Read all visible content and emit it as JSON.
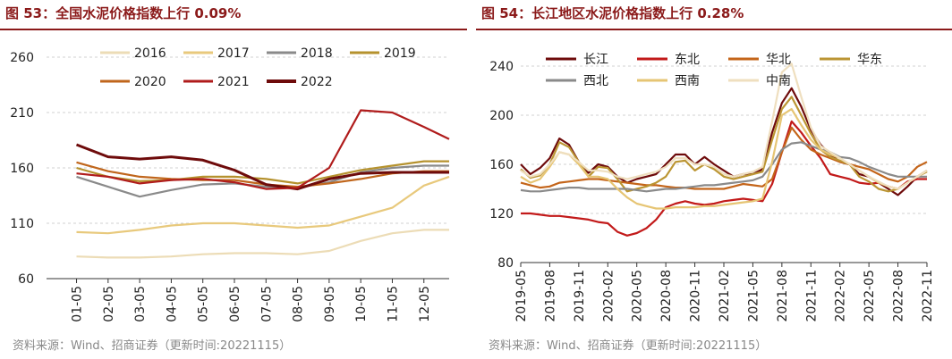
{
  "charts": [
    {
      "title": "图 53：全国水泥价格指数上行 0.09%",
      "source": "资料来源：Wind、招商证券（更新时间:20221115）"
    },
    {
      "title": "图 54：长江地区水泥价格指数上行 0.28%",
      "source": "资料来源：Wind、招商证券（更新时间:20221115）"
    }
  ],
  "chart_data": [
    {
      "type": "line",
      "title": "图 53：全国水泥价格指数上行 0.09%",
      "xlabel": "",
      "ylabel": "",
      "ylim": [
        60,
        260
      ],
      "yticks": [
        60,
        110,
        160,
        210,
        260
      ],
      "x": [
        1,
        2,
        3,
        4,
        5,
        6,
        7,
        8,
        9,
        10,
        11,
        12,
        12.8
      ],
      "categories": [
        "01-05",
        "02-05",
        "03-05",
        "04-05",
        "05-05",
        "06-05",
        "07-05",
        "08-05",
        "09-05",
        "10-05",
        "11-05",
        "12-05"
      ],
      "grid": true,
      "legend": "top",
      "series": [
        {
          "name": "2016",
          "color": "#ecdcb6",
          "values": [
            80,
            79,
            79,
            80,
            82,
            83,
            83,
            82,
            85,
            94,
            101,
            104,
            104
          ]
        },
        {
          "name": "2017",
          "color": "#e8c97c",
          "values": [
            102,
            101,
            104,
            108,
            110,
            110,
            108,
            106,
            108,
            116,
            124,
            144,
            152
          ]
        },
        {
          "name": "2018",
          "color": "#8a8a8a",
          "values": [
            152,
            143,
            134,
            140,
            145,
            146,
            143,
            142,
            147,
            156,
            160,
            162,
            162
          ]
        },
        {
          "name": "2019",
          "color": "#b5922e",
          "values": [
            160,
            152,
            148,
            149,
            152,
            152,
            150,
            146,
            152,
            158,
            162,
            166,
            166
          ]
        },
        {
          "name": "2020",
          "color": "#c0661c",
          "values": [
            165,
            157,
            152,
            150,
            149,
            149,
            145,
            143,
            146,
            150,
            155,
            157,
            157
          ]
        },
        {
          "name": "2021",
          "color": "#b01c1c",
          "values": [
            155,
            152,
            146,
            149,
            150,
            147,
            141,
            142,
            160,
            212,
            210,
            197,
            186
          ]
        },
        {
          "name": "2022",
          "color": "#6e0b0b",
          "values": [
            181,
            170,
            168,
            170,
            167,
            158,
            145,
            141,
            150,
            155,
            156,
            156,
            156
          ]
        }
      ]
    },
    {
      "type": "line",
      "title": "图 54：长江地区水泥价格指数上行 0.28%",
      "xlabel": "",
      "ylabel": "",
      "ylim": [
        80,
        240
      ],
      "yticks": [
        80,
        120,
        160,
        200,
        240
      ],
      "x": [
        0,
        1,
        2,
        3,
        4,
        5,
        6,
        7,
        8,
        9,
        10,
        11,
        12,
        13,
        14,
        15,
        16,
        17,
        18,
        19,
        20,
        21,
        22,
        23,
        24,
        25,
        26,
        27,
        28,
        29,
        30,
        31,
        32,
        33,
        34,
        35,
        36,
        37,
        38,
        39,
        40,
        41,
        42
      ],
      "categories": [
        "2019-05",
        "2019-08",
        "2019-11",
        "2020-02",
        "2020-05",
        "2020-08",
        "2020-11",
        "2021-02",
        "2021-05",
        "2021-08",
        "2021-11",
        "2022-02",
        "2022-05",
        "2022-08",
        "2022-11"
      ],
      "category_months": [
        0,
        3,
        6,
        9,
        12,
        15,
        18,
        21,
        24,
        27,
        30,
        33,
        36,
        39,
        42
      ],
      "grid": true,
      "legend": "top",
      "series": [
        {
          "name": "长江",
          "color": "#6e0b0b",
          "values": [
            160,
            152,
            157,
            165,
            181,
            176,
            162,
            153,
            160,
            158,
            150,
            145,
            148,
            150,
            152,
            160,
            168,
            168,
            160,
            166,
            160,
            155,
            150,
            152,
            152,
            156,
            186,
            210,
            222,
            207,
            188,
            176,
            168,
            162,
            160,
            152,
            150,
            145,
            140,
            135,
            142,
            150,
            155
          ]
        },
        {
          "name": "东北",
          "color": "#c21a1a",
          "values": [
            120,
            120,
            119,
            118,
            118,
            117,
            116,
            115,
            113,
            112,
            105,
            102,
            104,
            108,
            115,
            125,
            128,
            130,
            128,
            127,
            128,
            130,
            131,
            132,
            131,
            130,
            144,
            170,
            195,
            186,
            175,
            165,
            152,
            150,
            148,
            145,
            144,
            145,
            142,
            140,
            146,
            148,
            148
          ]
        },
        {
          "name": "华北",
          "color": "#c4651a",
          "values": [
            145,
            143,
            141,
            142,
            145,
            146,
            147,
            148,
            148,
            147,
            146,
            145,
            144,
            143,
            143,
            142,
            141,
            141,
            140,
            140,
            140,
            140,
            142,
            144,
            143,
            142,
            148,
            170,
            190,
            180,
            172,
            168,
            165,
            162,
            160,
            158,
            156,
            152,
            148,
            146,
            150,
            158,
            162
          ]
        },
        {
          "name": "华东",
          "color": "#bb9533",
          "values": [
            156,
            149,
            151,
            160,
            178,
            174,
            162,
            150,
            158,
            157,
            148,
            138,
            140,
            142,
            145,
            150,
            162,
            163,
            155,
            160,
            156,
            150,
            148,
            150,
            152,
            154,
            180,
            205,
            215,
            200,
            185,
            172,
            166,
            163,
            160,
            150,
            146,
            140,
            138,
            140,
            145,
            150,
            154
          ]
        },
        {
          "name": "西北",
          "color": "#8a8a8a",
          "values": [
            139,
            138,
            138,
            139,
            140,
            141,
            141,
            140,
            140,
            140,
            140,
            140,
            139,
            138,
            139,
            140,
            140,
            141,
            142,
            143,
            143,
            144,
            145,
            146,
            147,
            150,
            160,
            172,
            177,
            178,
            175,
            172,
            170,
            166,
            165,
            162,
            158,
            155,
            152,
            150,
            150,
            150,
            150
          ]
        },
        {
          "name": "西南",
          "color": "#e6c574",
          "values": [
            150,
            145,
            148,
            158,
            170,
            168,
            160,
            150,
            150,
            148,
            140,
            133,
            128,
            126,
            124,
            124,
            125,
            125,
            125,
            126,
            126,
            127,
            128,
            129,
            130,
            132,
            162,
            200,
            205,
            192,
            180,
            172,
            168,
            165,
            160,
            155,
            150,
            145,
            142,
            140,
            145,
            150,
            155
          ]
        },
        {
          "name": "中南",
          "color": "#efdfbf",
          "values": [
            155,
            150,
            152,
            160,
            170,
            168,
            162,
            155,
            155,
            154,
            150,
            148,
            150,
            152,
            154,
            158,
            165,
            165,
            160,
            160,
            158,
            152,
            150,
            152,
            154,
            158,
            195,
            235,
            242,
            215,
            190,
            175,
            170,
            165,
            160,
            155,
            150,
            146,
            142,
            140,
            145,
            150,
            155
          ]
        }
      ]
    }
  ]
}
